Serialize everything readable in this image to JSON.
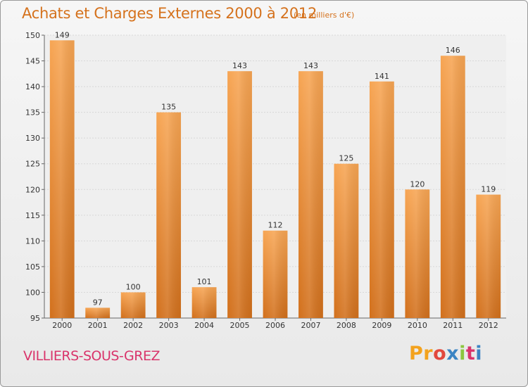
{
  "title": "Achats et Charges Externes 2000 à 2012",
  "subtitle": "(en milliers d'€)",
  "commune": "VILLIERS-SOUS-GREZ",
  "brand": [
    "Pr",
    "o",
    "x",
    "i",
    "t",
    "i"
  ],
  "colors": {
    "bar_light": "#f7a553",
    "bar_dark": "#d2701c",
    "title": "#d5721d",
    "commune": "#d9346b"
  },
  "chart_data": {
    "type": "bar",
    "title": "Achats et Charges Externes 2000 à 2012",
    "subtitle": "(en milliers d'€)",
    "categories": [
      "2000",
      "2001",
      "2002",
      "2003",
      "2004",
      "2005",
      "2006",
      "2007",
      "2008",
      "2009",
      "2010",
      "2011",
      "2012"
    ],
    "values": [
      149,
      97,
      100,
      135,
      101,
      143,
      112,
      143,
      125,
      141,
      120,
      146,
      119
    ],
    "ylim": [
      95,
      150
    ],
    "yticks": [
      95,
      100,
      105,
      110,
      115,
      120,
      125,
      130,
      135,
      140,
      145,
      150
    ],
    "grid": true,
    "xlabel": "",
    "ylabel": ""
  }
}
